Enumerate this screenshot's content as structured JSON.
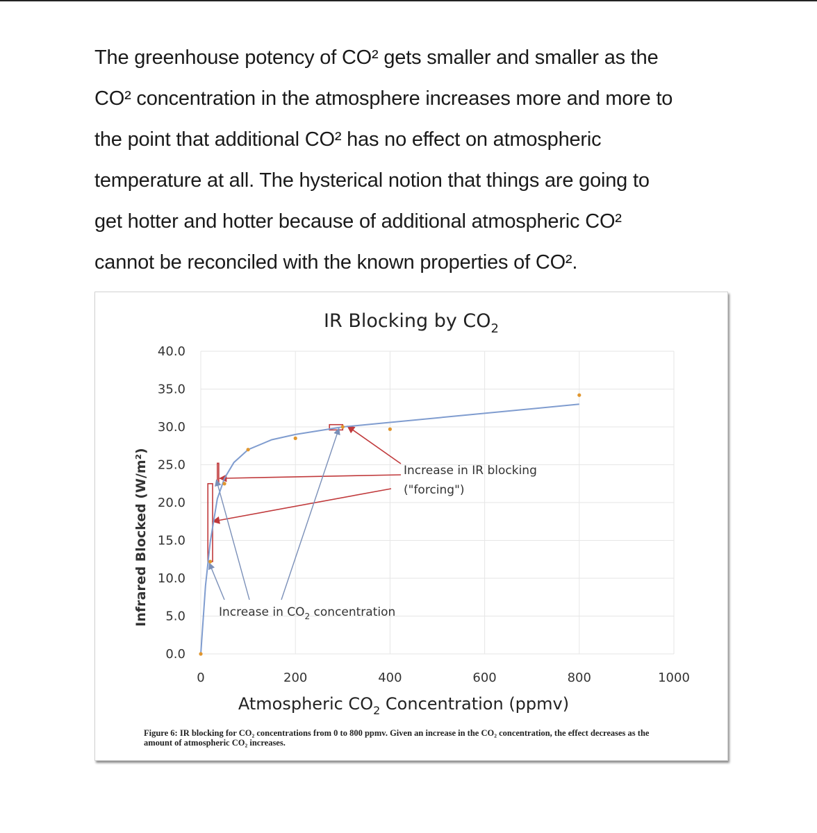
{
  "paragraph": {
    "lines": [
      "The greenhouse potency of CO² gets smaller and smaller as the",
      "CO² concentration in the atmosphere increases more and more to",
      "the point that additional CO² has no effect on atmospheric",
      "temperature at all. The hysterical notion that things are going to",
      "get hotter and hotter because of additional atmospheric CO²",
      "cannot be reconciled with the known properties of CO²."
    ]
  },
  "figure": {
    "caption": "Figure 6: IR blocking for CO₂ concentrations from 0 to 800 ppmv. Given an increase in the CO₂ concentration, the effect decreases as the amount of atmospheric CO₂ increases."
  },
  "colors": {
    "curve": "#7f9ccf",
    "points": "#e0962e",
    "arrows": "#c0393b",
    "co2_arrows": "#7a8fb8",
    "grid": "#e6e6e6"
  },
  "chart_data": {
    "type": "scatter",
    "title_text": "IR Blocking by CO",
    "title_subscript": "2",
    "xlabel_text": "Atmospheric CO",
    "xlabel_subscript": "2",
    "xlabel_suffix": " Concentration (ppmv)",
    "ylabel": "Infrared Blocked (W/m²)",
    "xlim": [
      0,
      1000
    ],
    "ylim": [
      0,
      40
    ],
    "x_ticks": [
      0,
      200,
      400,
      600,
      800,
      1000
    ],
    "y_ticks": [
      "0.0",
      "5.0",
      "10.0",
      "15.0",
      "20.0",
      "25.0",
      "30.0",
      "35.0",
      "40.0"
    ],
    "grid": true,
    "series": [
      {
        "kind": "points",
        "x": [
          0,
          20,
          50,
          100,
          200,
          300,
          400,
          800
        ],
        "y": [
          0,
          12.2,
          22.5,
          27.0,
          28.5,
          30.0,
          29.7,
          34.2
        ]
      },
      {
        "kind": "fitted-curve",
        "x": [
          0,
          10,
          20,
          35,
          50,
          70,
          100,
          150,
          200,
          300,
          400,
          600,
          800
        ],
        "y": [
          0,
          9.0,
          14.8,
          20.5,
          23.2,
          25.3,
          27.0,
          28.3,
          29.0,
          30.0,
          30.6,
          31.8,
          33.0
        ]
      }
    ],
    "annotations": {
      "ir_label_line1": "Increase in IR blocking",
      "ir_label_line2": "(\"forcing\")",
      "co2_label_text": "Increase in CO",
      "co2_label_subscript": "2",
      "co2_label_suffix": " concentration"
    }
  }
}
